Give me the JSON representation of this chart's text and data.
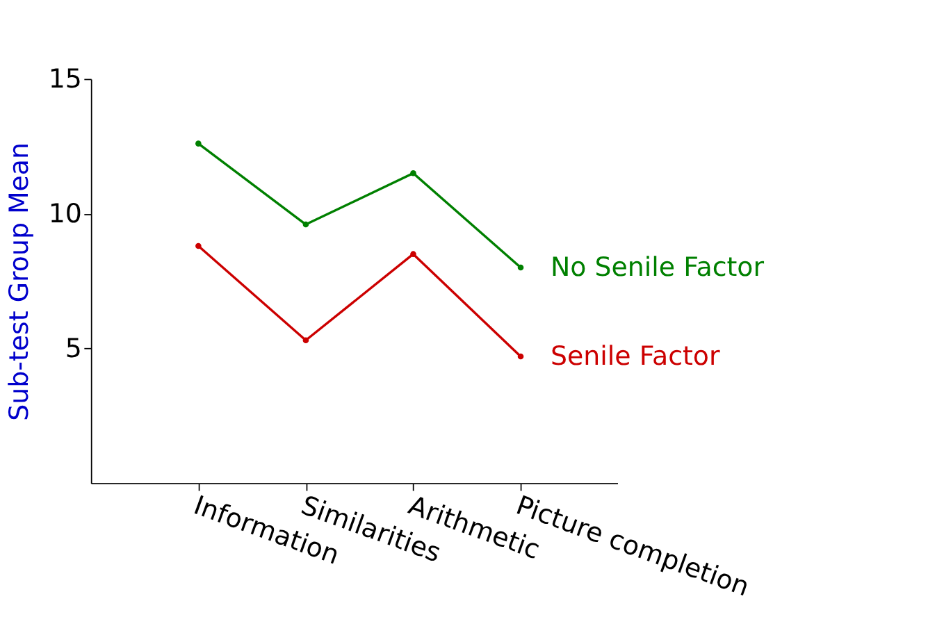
{
  "chart_data": {
    "type": "line",
    "ylabel": "Sub-test Group Mean",
    "categories": [
      "Information",
      "Similarities",
      "Arithmetic",
      "Picture completion"
    ],
    "series": [
      {
        "name": "No Senile Factor",
        "color": "#008000",
        "values": [
          12.6,
          9.6,
          11.5,
          8.0
        ]
      },
      {
        "name": "Senile Factor",
        "color": "#cc0000",
        "values": [
          8.8,
          5.3,
          8.5,
          4.7
        ]
      }
    ],
    "ylim": [
      0,
      15
    ],
    "yticks": [
      5,
      10,
      15
    ],
    "grid": false,
    "legend": false,
    "marker": "circle",
    "line_style": "solid"
  }
}
